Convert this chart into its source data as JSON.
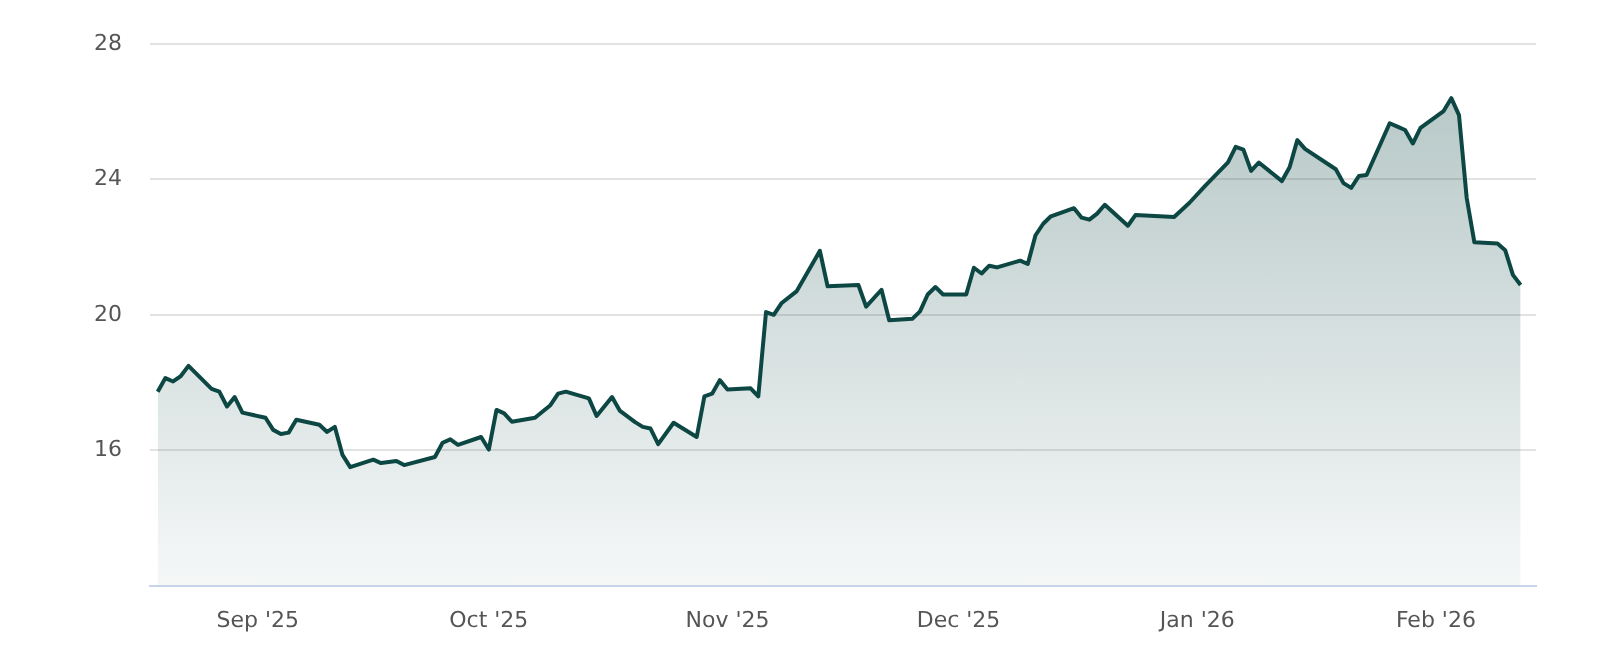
{
  "chart_data": {
    "type": "area",
    "grid": "y",
    "legend": false,
    "marker": "none",
    "xlim": [
      "2025-08-18",
      "2026-02-14"
    ],
    "xticks": [
      {
        "value": "2025-09-01",
        "label": "Sep '25"
      },
      {
        "value": "2025-10-01",
        "label": "Oct '25"
      },
      {
        "value": "2025-11-01",
        "label": "Nov '25"
      },
      {
        "value": "2025-12-01",
        "label": "Dec '25"
      },
      {
        "value": "2026-01-01",
        "label": "Jan '26"
      },
      {
        "value": "2026-02-01",
        "label": "Feb '26"
      }
    ],
    "ylim": [
      12,
      28
    ],
    "yticks": [
      16,
      20,
      24,
      28
    ],
    "x": [
      "2025-08-19",
      "2025-08-20",
      "2025-08-21",
      "2025-08-22",
      "2025-08-23",
      "2025-08-26",
      "2025-08-27",
      "2025-08-28",
      "2025-08-29",
      "2025-08-30",
      "2025-09-02",
      "2025-09-03",
      "2025-09-04",
      "2025-09-05",
      "2025-09-06",
      "2025-09-09",
      "2025-09-10",
      "2025-09-11",
      "2025-09-12",
      "2025-09-13",
      "2025-09-16",
      "2025-09-17",
      "2025-09-19",
      "2025-09-20",
      "2025-09-24",
      "2025-09-25",
      "2025-09-26",
      "2025-09-27",
      "2025-09-30",
      "2025-10-01",
      "2025-10-02",
      "2025-10-03",
      "2025-10-04",
      "2025-10-07",
      "2025-10-09",
      "2025-10-10",
      "2025-10-11",
      "2025-10-14",
      "2025-10-15",
      "2025-10-17",
      "2025-10-18",
      "2025-10-20",
      "2025-10-21",
      "2025-10-22",
      "2025-10-23",
      "2025-10-25",
      "2025-10-28",
      "2025-10-29",
      "2025-10-30",
      "2025-10-31",
      "2025-11-01",
      "2025-11-04",
      "2025-11-05",
      "2025-11-06",
      "2025-11-07",
      "2025-11-08",
      "2025-11-10",
      "2025-11-13",
      "2025-11-14",
      "2025-11-18",
      "2025-11-19",
      "2025-11-21",
      "2025-11-22",
      "2025-11-25",
      "2025-11-26",
      "2025-11-27",
      "2025-11-28",
      "2025-11-29",
      "2025-12-02",
      "2025-12-03",
      "2025-12-04",
      "2025-12-05",
      "2025-12-06",
      "2025-12-09",
      "2025-12-10",
      "2025-12-11",
      "2025-12-12",
      "2025-12-13",
      "2025-12-16",
      "2025-12-17",
      "2025-12-18",
      "2025-12-19",
      "2025-12-20",
      "2025-12-23",
      "2025-12-24",
      "2025-12-29",
      "2025-12-31",
      "2026-01-02",
      "2026-01-05",
      "2026-01-06",
      "2026-01-07",
      "2026-01-08",
      "2026-01-09",
      "2026-01-12",
      "2026-01-13",
      "2026-01-14",
      "2026-01-15",
      "2026-01-19",
      "2026-01-20",
      "2026-01-21",
      "2026-01-22",
      "2026-01-23",
      "2026-01-26",
      "2026-01-27",
      "2026-01-28",
      "2026-01-29",
      "2026-01-30",
      "2026-02-02",
      "2026-02-03",
      "2026-02-04",
      "2026-02-05",
      "2026-02-06",
      "2026-02-09",
      "2026-02-10",
      "2026-02-11",
      "2026-02-12"
    ],
    "series": [
      {
        "color": "#0d4744",
        "values": [
          17.73,
          18.13,
          18.03,
          18.19,
          18.49,
          17.81,
          17.73,
          17.29,
          17.57,
          17.11,
          16.96,
          16.6,
          16.48,
          16.52,
          16.9,
          16.75,
          16.54,
          16.69,
          15.86,
          15.5,
          15.72,
          15.62,
          15.68,
          15.56,
          15.8,
          16.22,
          16.32,
          16.16,
          16.39,
          16.02,
          17.19,
          17.09,
          16.84,
          16.96,
          17.33,
          17.67,
          17.73,
          17.53,
          17.01,
          17.57,
          17.17,
          16.83,
          16.69,
          16.64,
          16.18,
          16.81,
          16.39,
          17.59,
          17.67,
          18.07,
          17.79,
          17.83,
          17.59,
          20.08,
          20.0,
          20.34,
          20.7,
          21.89,
          20.84,
          20.88,
          20.24,
          20.74,
          19.84,
          19.88,
          20.1,
          20.6,
          20.82,
          20.6,
          20.6,
          21.39,
          21.22,
          21.45,
          21.4,
          21.6,
          21.5,
          22.35,
          22.69,
          22.91,
          23.15,
          22.87,
          22.81,
          22.99,
          23.25,
          22.63,
          22.95,
          22.89,
          23.31,
          23.8,
          24.5,
          24.96,
          24.88,
          24.25,
          24.5,
          23.95,
          24.36,
          25.16,
          24.9,
          24.3,
          23.89,
          23.75,
          24.1,
          24.13,
          25.66,
          25.56,
          25.46,
          25.06,
          25.52,
          26.02,
          26.4,
          25.9,
          23.45,
          22.14,
          22.11,
          21.91,
          21.18,
          20.88
        ]
      }
    ]
  }
}
